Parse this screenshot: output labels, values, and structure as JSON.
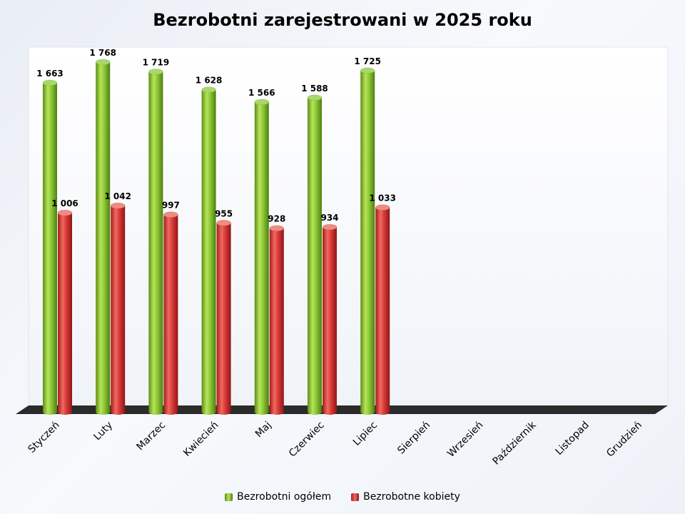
{
  "chart_data": {
    "type": "bar",
    "title": "Bezrobotni zarejestrowani w 2025 roku",
    "categories": [
      "Styczeń",
      "Luty",
      "Marzec",
      "Kwiecień",
      "Maj",
      "Czerwiec",
      "Lipiec",
      "Sierpień",
      "Wrzesień",
      "Październik",
      "Listopad",
      "Grudzień"
    ],
    "series": [
      {
        "name": "Bezrobotni ogółem",
        "color": "#7dbb2a",
        "values": [
          1663,
          1768,
          1719,
          1628,
          1566,
          1588,
          1725,
          null,
          null,
          null,
          null,
          null
        ],
        "labels": [
          "1 663",
          "1 768",
          "1 719",
          "1 628",
          "1 566",
          "1 588",
          "1 725",
          null,
          null,
          null,
          null,
          null
        ]
      },
      {
        "name": "Bezrobotne kobiety",
        "color": "#d93a3a",
        "values": [
          1006,
          1042,
          997,
          955,
          928,
          934,
          1033,
          null,
          null,
          null,
          null,
          null
        ],
        "labels": [
          "1 006",
          "1 042",
          "997",
          "955",
          "928",
          "934",
          "1 033",
          null,
          null,
          null,
          null,
          null
        ]
      }
    ],
    "ylim": [
      0,
      1800
    ],
    "grid": false,
    "legend": "bottom"
  }
}
